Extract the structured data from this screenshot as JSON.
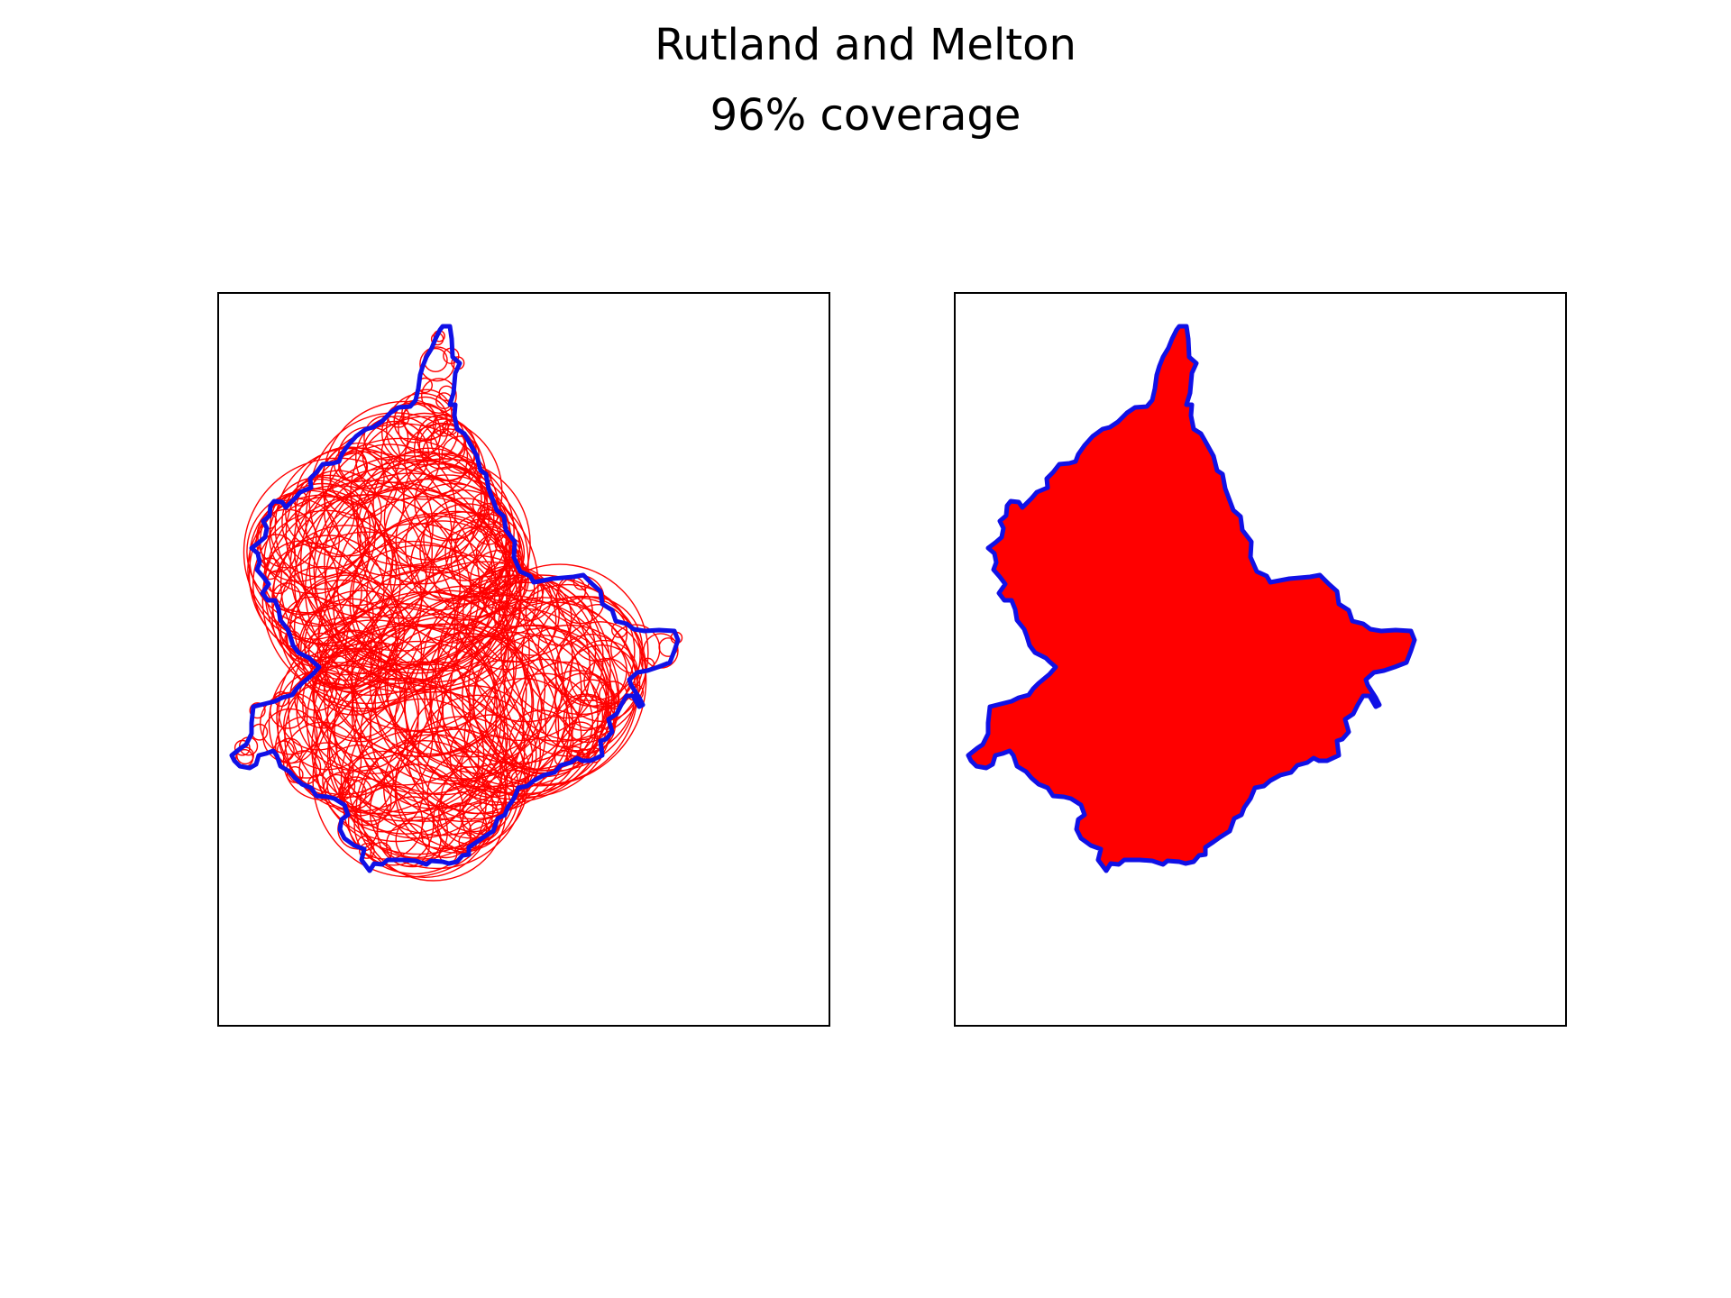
{
  "figure": {
    "title": "Rutland and Melton",
    "subtitle": "96% coverage"
  },
  "colors": {
    "boundary": "#1010e6",
    "circles": "#ff0000",
    "fill": "#ff0000",
    "frame": "#000000",
    "background": "#ffffff"
  },
  "panels": [
    {
      "id": "circles",
      "description_shape": "boundary with covering circles"
    },
    {
      "id": "filled",
      "description_shape": "boundary with filled coverage"
    }
  ]
}
